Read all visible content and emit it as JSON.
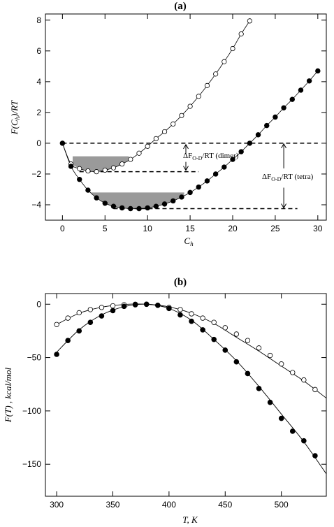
{
  "chart_data": [
    {
      "type": "scatter",
      "panel_label": "(a)",
      "xlabel": "C_h",
      "ylabel": "F(C_h)/RT",
      "xlim": [
        -2,
        31
      ],
      "ylim": [
        -5,
        8.4
      ],
      "xticks": [
        0,
        5,
        10,
        15,
        20,
        25,
        30
      ],
      "yticks": [
        -4,
        -2,
        0,
        2,
        4,
        6,
        8
      ],
      "series": [
        {
          "marker": "open-circle",
          "x": [
            0,
            1,
            2,
            3,
            4,
            5,
            6,
            7,
            8,
            9,
            10,
            11,
            12,
            13,
            14,
            15,
            16,
            17,
            18,
            19,
            20,
            21,
            22
          ],
          "y": [
            0,
            -1.35,
            -1.65,
            -1.8,
            -1.85,
            -1.75,
            -1.6,
            -1.35,
            -1.05,
            -0.65,
            -0.2,
            0.3,
            0.75,
            1.25,
            1.8,
            2.4,
            3.05,
            3.75,
            4.5,
            5.3,
            6.15,
            7.1,
            7.95
          ]
        },
        {
          "marker": "filled-circle",
          "x": [
            0,
            1,
            2,
            3,
            4,
            5,
            6,
            7,
            8,
            9,
            10,
            11,
            12,
            13,
            14,
            15,
            16,
            17,
            18,
            19,
            20,
            21,
            22,
            23,
            24,
            25,
            26,
            27,
            28,
            29,
            30
          ],
          "y": [
            0,
            -1.5,
            -2.35,
            -3.05,
            -3.55,
            -3.9,
            -4.1,
            -4.2,
            -4.25,
            -4.25,
            -4.2,
            -4.1,
            -3.95,
            -3.75,
            -3.5,
            -3.2,
            -2.85,
            -2.45,
            -2.0,
            -1.55,
            -1.05,
            -0.55,
            0.0,
            0.55,
            1.15,
            1.7,
            2.3,
            2.85,
            3.45,
            4.05,
            4.7
          ]
        }
      ],
      "reference_lines": [
        {
          "y": 0,
          "x_range": [
            0,
            30
          ]
        },
        {
          "y": -1.85,
          "x_range": [
            2,
            16
          ]
        },
        {
          "y": -4.25,
          "x_range": [
            6,
            27.6
          ]
        }
      ],
      "shaded_wells": [
        {
          "top": -0.85,
          "bottom": -1.85,
          "x_from": 1.2,
          "x_to": 7.8
        },
        {
          "top": -3.2,
          "bottom": -4.25,
          "x_from": 3.0,
          "x_to": 14.3
        }
      ],
      "annotations": [
        {
          "text": "ΔF_O-D/RT (dimer)",
          "arrow_x": 14.5,
          "arrow_span": [
            -0.1,
            -1.85
          ]
        },
        {
          "text": "ΔF_O-D/RT (tetra)",
          "arrow_x": 26.0,
          "arrow_span": [
            0,
            -4.25
          ]
        }
      ]
    },
    {
      "type": "scatter",
      "panel_label": "(b)",
      "xlabel": "T,  K",
      "ylabel": "F(T) , kcal/mol",
      "xlim": [
        290,
        540
      ],
      "ylim": [
        -180,
        10
      ],
      "xticks": [
        300,
        350,
        400,
        450,
        500
      ],
      "yticks": [
        0,
        -50,
        -100,
        -150
      ],
      "series": [
        {
          "marker": "open-circle",
          "x": [
            300,
            310,
            320,
            330,
            340,
            350,
            360,
            370,
            380,
            390,
            400,
            410,
            420,
            430,
            440,
            450,
            460,
            470,
            480,
            490,
            500,
            510,
            520,
            530
          ],
          "y": [
            -19,
            -13,
            -8,
            -5,
            -3,
            -1.5,
            -0.5,
            0,
            0,
            -1,
            -3,
            -5,
            -9,
            -13,
            -17,
            -22,
            -28,
            -34,
            -41,
            -48,
            -56,
            -64,
            -71,
            -80
          ]
        },
        {
          "marker": "filled-circle",
          "x": [
            300,
            310,
            320,
            330,
            340,
            350,
            360,
            370,
            380,
            390,
            400,
            410,
            420,
            430,
            440,
            450,
            460,
            470,
            480,
            490,
            500,
            510,
            520,
            530
          ],
          "y": [
            -47,
            -34,
            -25,
            -17,
            -11,
            -6,
            -2,
            -0.5,
            0,
            -1,
            -4,
            -10,
            -16,
            -24,
            -33,
            -43,
            -54,
            -65,
            -79,
            -92,
            -107,
            -119,
            -128,
            -142
          ]
        }
      ],
      "fit_curves": [
        {
          "x": [
            300,
            320,
            340,
            360,
            380,
            400,
            420,
            440,
            460,
            480,
            500,
            520,
            540
          ],
          "y": [
            -19,
            -8.5,
            -2.8,
            -0.3,
            0,
            -2.5,
            -8.5,
            -18,
            -31,
            -44,
            -58,
            -72,
            -88
          ]
        },
        {
          "x": [
            300,
            320,
            340,
            360,
            380,
            400,
            420,
            440,
            460,
            480,
            500,
            520,
            540
          ],
          "y": [
            -45,
            -24,
            -10,
            -2.3,
            0,
            -4,
            -15,
            -33,
            -53,
            -77,
            -103,
            -129,
            -159
          ]
        }
      ]
    }
  ]
}
